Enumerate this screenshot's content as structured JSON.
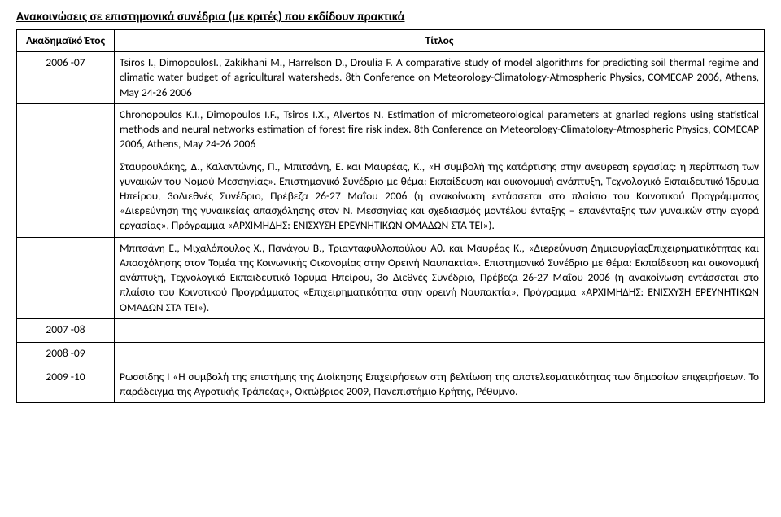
{
  "doc": {
    "heading": "Ανακοινώσεις σε επιστημονικά συνέδρια (με κριτές) που εκδίδουν πρακτικά"
  },
  "table": {
    "headers": {
      "year": "Ακαδημαϊκό Έτος",
      "title": "Τίτλος"
    },
    "rows": [
      {
        "year": "2006 -07",
        "content": "Tsiros I., DimopoulosI., Zakikhani M., Harrelson D., Droulia F. A comparative study of model algorithms for predicting soil thermal regime and climatic water budget of agricultural watersheds. 8th Conference on Meteorology-Climatology-Atmospheric Physics, COMECAP 2006, Athens, May 24-26 2006"
      },
      {
        "year": "",
        "content": "Chronopoulos K.I., Dimopoulos I.F., Tsiros I.X., Alvertos N. Estimation of micrometeorological parameters at gnarled regions using statistical methods and neural networks estimation of forest fire risk index. 8th Conference on Meteorology-Climatology-Atmospheric Physics, COMECAP 2006, Athens, May 24-26 2006"
      },
      {
        "year": "",
        "content": "Σταυρουλάκης, Δ., Καλαντώνης, Π., Μπιτσάνη, Ε. και Μαυρέας, Κ., «Η συμβολή της κατάρτισης στην ανεύρεση εργασίας: η περίπτωση των γυναικών του Νομού Μεσσηνίας». Επιστημονικό Συνέδριο με θέμα: Εκπαίδευση και οικονομική ανάπτυξη, Τεχνολογικό Εκπαιδευτικό Ίδρυμα Ηπείρου, 3οΔιεθνές Συνέδριο, Πρέβεζα 26-27 Μαΐου 2006 (η ανακοίνωση εντάσσεται στο πλαίσιο του Κοινοτικού Προγράμματος «Διερεύνηση της γυναικείας απασχόλησης στον Ν. Μεσσηνίας και σχεδιασμός μοντέλου ένταξης – επανένταξης των γυναικών στην αγορά εργασίας», Πρόγραμμα «ΑΡΧΙΜΗΔΗΣ: ΕΝΙΣΧΥΣΗ ΕΡΕΥΝΗΤΙΚΩΝ ΟΜΑΔΩΝ ΣΤΑ ΤΕΙ»)."
      },
      {
        "year": "",
        "content": "Μπιτσάνη Ε., Μιχαλόπουλος Χ., Πανάγου Β., Τριανταφυλλοπούλου Αθ. και Μαυρέας Κ., «Διερεύνυση ΔημιουργίαςΕπιχειρηματικότητας και Απασχόλησης στον Τομέα  της Κοινωνικής Οικονομίας στην Ορεινή Ναυπακτία». Επιστημονικό Συνέδριο με θέμα: Εκπαίδευση και οικονομική ανάπτυξη, Τεχνολογικό Εκπαιδευτικό Ίδρυμα Ηπείρου, 3ο Διεθνές Συνέδριο, Πρέβεζα 26-27 Μαΐου 2006 (η ανακοίνωση εντάσσεται στο πλαίσιο του Κοινοτικού Προγράμματος «Επιχειρηματικότητα στην ορεινή Ναυπακτία», Πρόγραμμα «ΑΡΧΙΜΗΔΗΣ: ΕΝΙΣΧΥΣΗ ΕΡΕΥΝΗΤΙΚΩΝ ΟΜΑΔΩΝ ΣΤΑ ΤΕΙ»)."
      },
      {
        "year": "2007 -08",
        "content": ""
      },
      {
        "year": "2008 -09",
        "content": ""
      },
      {
        "year": "2009 -10",
        "content": "Ρωσσίδης Ι  «Η συμβολή της επιστήμης της Διοίκησης Επιχειρήσεων στη βελτίωση της αποτελεσματικότητας των δημοσίων επιχειρήσεων. Το παράδειγμα της Αγροτικής Τράπεζας», Οκτώβριος 2009, Πανεπιστήμιο Κρήτης, Ρέθυμνο."
      }
    ]
  }
}
